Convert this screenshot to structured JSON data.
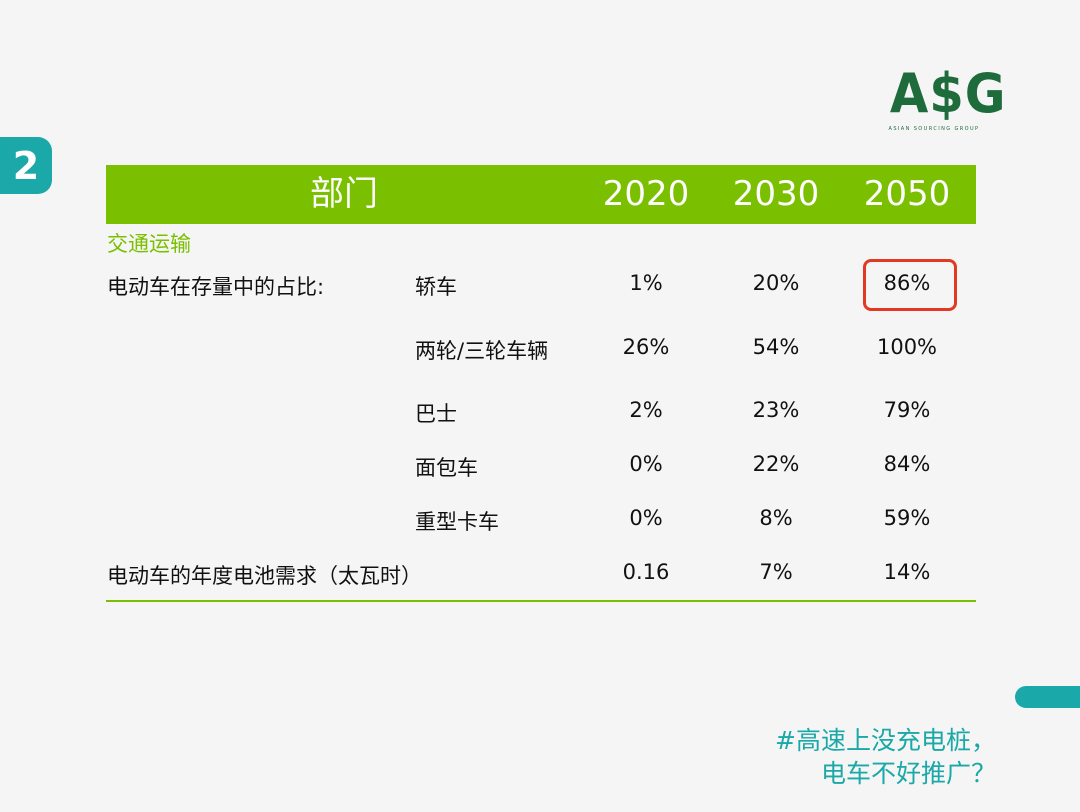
{
  "page_number": "2",
  "logo": {
    "mark": "A$G",
    "subtitle": "ASIAN SOURCING GROUP"
  },
  "table": {
    "header": {
      "sector": "部门",
      "years": [
        "2020",
        "2030",
        "2050"
      ]
    },
    "category": "交通运输",
    "ev_share_label": "电动车在存量中的占比:",
    "rows": [
      {
        "label": "轿车",
        "values": [
          "1%",
          "20%",
          "86%"
        ]
      },
      {
        "label": "两轮/三轮车辆",
        "values": [
          "26%",
          "54%",
          "100%"
        ]
      },
      {
        "label": "巴士",
        "values": [
          "2%",
          "23%",
          "79%"
        ]
      },
      {
        "label": "面包车",
        "values": [
          "0%",
          "22%",
          "84%"
        ]
      },
      {
        "label": "重型卡车",
        "values": [
          "0%",
          "8%",
          "59%"
        ]
      }
    ],
    "battery_row": {
      "label": "电动车的年度电池需求（太瓦时）",
      "values": [
        "0.16",
        "7%",
        "14%"
      ]
    },
    "highlight_color": "#e23a22",
    "header_color": "#7ac000"
  },
  "caption": {
    "line1": "#高速上没充电桩，",
    "line2": "电车不好推广？"
  },
  "accent_color": "#1aa8a8"
}
